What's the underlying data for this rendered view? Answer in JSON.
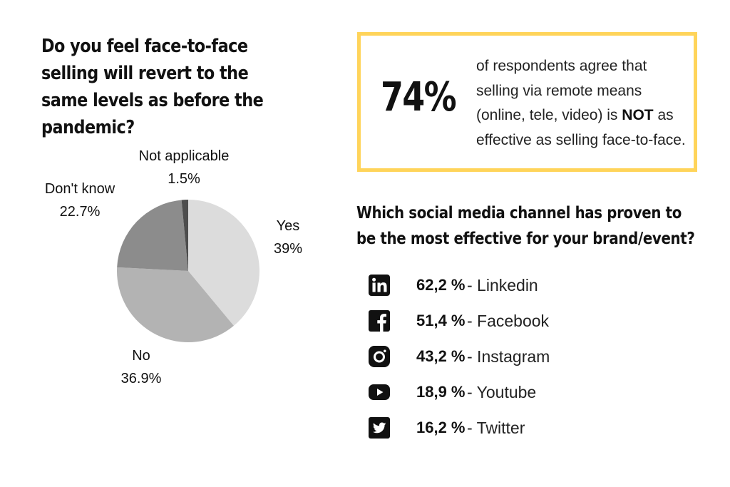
{
  "question1": "Do you feel face-to-face selling will revert to the same levels as before the pandemic?",
  "chart_data": {
    "type": "pie",
    "title": "Do you feel face-to-face selling will revert to the same levels as before the pandemic?",
    "slices": [
      {
        "label": "Yes",
        "display": "39%",
        "value": 39,
        "color": "#dcdcdc"
      },
      {
        "label": "No",
        "display": "36.9%",
        "value": 36.9,
        "color": "#b3b3b3"
      },
      {
        "label": "Don't know",
        "display": "22.7%",
        "value": 22.7,
        "color": "#8c8c8c"
      },
      {
        "label": "Not applicable",
        "display": "1.5%",
        "value": 1.5,
        "color": "#4d4d4d"
      }
    ]
  },
  "stat": {
    "percent": "74%",
    "text_before": "of respondents agree that selling via remote means (online, tele, video) is ",
    "text_bold": "NOT",
    "text_after": " as effective as selling face-to-face."
  },
  "question2": "Which social media channel has proven to be the most effective for your brand/event?",
  "channels": [
    {
      "icon": "linkedin-icon",
      "percent": "62,2 %",
      "name": "- Linkedin"
    },
    {
      "icon": "facebook-icon",
      "percent": "51,4 %",
      "name": "- Facebook"
    },
    {
      "icon": "instagram-icon",
      "percent": "43,2 %",
      "name": "- Instagram"
    },
    {
      "icon": "youtube-icon",
      "percent": "18,9 %",
      "name": "- Youtube"
    },
    {
      "icon": "twitter-icon",
      "percent": "16,2 %",
      "name": "- Twitter"
    }
  ]
}
